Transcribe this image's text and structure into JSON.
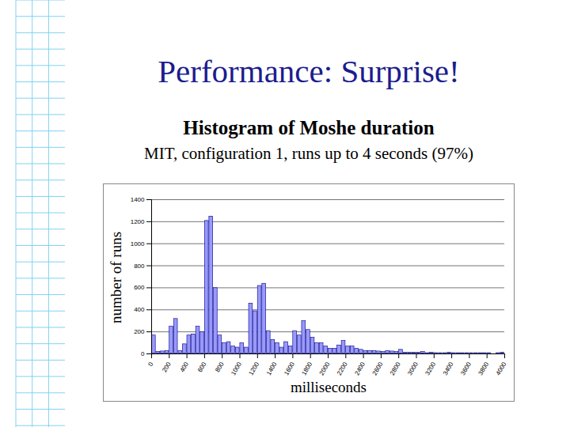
{
  "slide_title": "Performance: Surprise!",
  "chart_data": {
    "type": "histogram",
    "title": "Histogram of Moshe duration",
    "subtitle": "MIT, configuration 1,  runs up to 4 seconds (97%)",
    "x_label": "milliseconds",
    "y_label": "number of runs",
    "bins": [
      0,
      50,
      100,
      150,
      200,
      250,
      300,
      350,
      400,
      450,
      500,
      550,
      600,
      650,
      700,
      750,
      800,
      850,
      900,
      950,
      1000,
      1050,
      1100,
      1150,
      1200,
      1250,
      1300,
      1350,
      1400,
      1450,
      1500,
      1550,
      1600,
      1650,
      1700,
      1750,
      1800,
      1850,
      1900,
      1950,
      2000,
      2050,
      2100,
      2150,
      2200,
      2250,
      2300,
      2350,
      2400,
      2450,
      2500,
      2550,
      2600,
      2650,
      2700,
      2750,
      2800,
      2850,
      2900,
      2950,
      3000,
      3050,
      3100,
      3150,
      3200,
      3250,
      3300,
      3350,
      3400,
      3450,
      3500,
      3550,
      3600,
      3650,
      3700,
      3750,
      3800,
      3850,
      3900,
      3950,
      4000
    ],
    "values": [
      170,
      20,
      25,
      30,
      250,
      320,
      30,
      90,
      170,
      180,
      250,
      200,
      1210,
      1250,
      600,
      170,
      100,
      110,
      70,
      60,
      100,
      60,
      460,
      390,
      620,
      640,
      210,
      130,
      100,
      60,
      110,
      70,
      210,
      170,
      300,
      220,
      150,
      100,
      100,
      70,
      50,
      50,
      80,
      120,
      70,
      70,
      50,
      40,
      30,
      30,
      30,
      25,
      20,
      30,
      25,
      20,
      40,
      15,
      15,
      15,
      15,
      20,
      10,
      15,
      10,
      10,
      10,
      15,
      10,
      10,
      10,
      10,
      10,
      10,
      10,
      10,
      10,
      5,
      10,
      15
    ],
    "color": "#9999ff",
    "xlim": [
      0,
      4000
    ],
    "xticks": [
      0,
      200,
      400,
      600,
      800,
      1000,
      1200,
      1400,
      1600,
      1800,
      2000,
      2200,
      2400,
      2600,
      2800,
      3000,
      3200,
      3400,
      3600,
      3800,
      4000
    ],
    "ylim": [
      0,
      1400
    ],
    "yticks": [
      0,
      200,
      400,
      600,
      800,
      1000,
      1200,
      1400
    ],
    "grid": true
  }
}
